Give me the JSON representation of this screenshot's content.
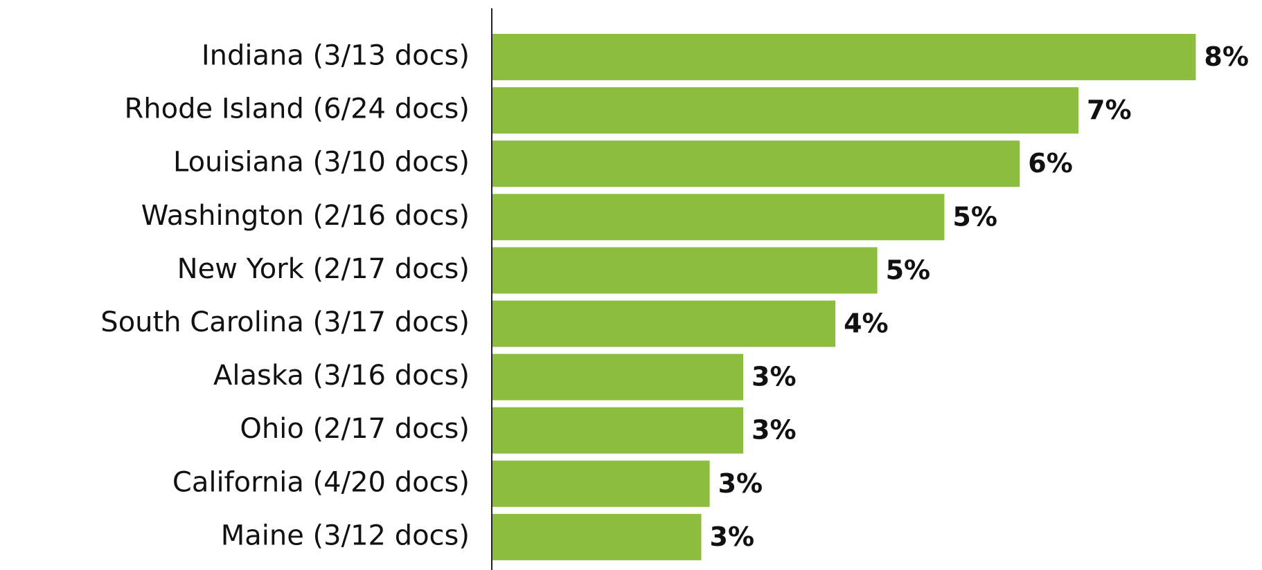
{
  "chart_data": {
    "type": "bar",
    "orientation": "horizontal",
    "categories": [
      "Indiana (3/13 docs)",
      "Rhode Island (6/24 docs)",
      "Louisiana (3/10 docs)",
      "Washington (2/16 docs)",
      "New York (2/17 docs)",
      "South Carolina (3/17 docs)",
      "Alaska (3/16 docs)",
      "Ohio (2/17 docs)",
      "California (4/20 docs)",
      "Maine (3/12 docs)"
    ],
    "values": [
      8.4,
      7.0,
      6.3,
      5.4,
      4.6,
      4.1,
      3.0,
      3.0,
      2.6,
      2.5
    ],
    "value_labels": [
      "8%",
      "7%",
      "6%",
      "5%",
      "5%",
      "4%",
      "3%",
      "3%",
      "3%",
      "3%"
    ],
    "color": "#8cbd3f",
    "xlim": [
      0,
      9
    ]
  }
}
